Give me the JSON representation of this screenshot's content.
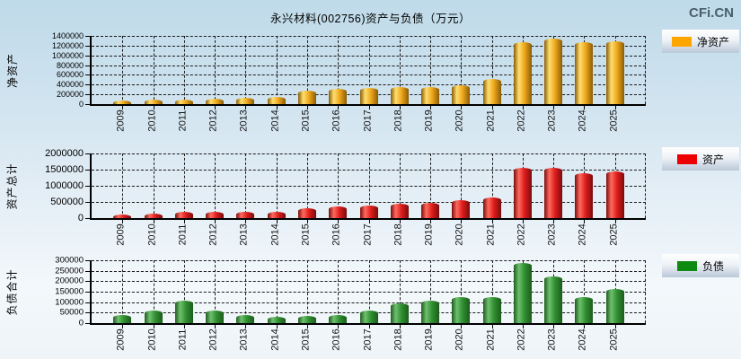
{
  "page": {
    "title": "永兴材料(002756)资产与负债（万元）",
    "watermark": "CFi.CN"
  },
  "chart_data": [
    {
      "type": "bar",
      "title": "净资产柱状图",
      "ylabel": "净资产",
      "legend": "净资产",
      "legend_color": "#FFA500",
      "bar_gradient": {
        "dark": "#8a5c06",
        "light": "#ffdf70",
        "mid": "#eea71c"
      },
      "categories": [
        "2009",
        "2010",
        "2011",
        "2012",
        "2013",
        "2014",
        "2015",
        "2016",
        "2017",
        "2018",
        "2019",
        "2020",
        "2021",
        "2022",
        "2023",
        "2024",
        "2025"
      ],
      "values": [
        72000,
        85000,
        98000,
        112000,
        130000,
        155000,
        285000,
        310000,
        330000,
        348000,
        342000,
        395000,
        515000,
        1270000,
        1350000,
        1270000,
        1295000
      ],
      "ylim": [
        0,
        1400000
      ],
      "yticks": [
        0,
        200000,
        400000,
        600000,
        800000,
        1000000,
        1200000,
        1400000
      ],
      "grid": true,
      "legend_position": "right"
    },
    {
      "type": "bar",
      "title": "资产总计柱状图",
      "ylabel": "资产总计",
      "legend": "资产",
      "legend_color": "#EE0000",
      "bar_gradient": {
        "dark": "#7a0c0c",
        "light": "#ff6b5e",
        "mid": "#dd1c1c"
      },
      "categories": [
        "2009",
        "2010",
        "2011",
        "2012",
        "2013",
        "2014",
        "2015",
        "2016",
        "2017",
        "2018",
        "2019",
        "2020",
        "2021",
        "2022",
        "2023",
        "2024",
        "2025"
      ],
      "values": [
        125000,
        145000,
        195000,
        190000,
        190000,
        190000,
        315000,
        350000,
        385000,
        435000,
        465000,
        545000,
        650000,
        1565000,
        1560000,
        1395000,
        1450000
      ],
      "ylim": [
        0,
        2000000
      ],
      "yticks": [
        0,
        500000,
        1000000,
        1500000,
        2000000
      ],
      "grid": true,
      "legend_position": "right"
    },
    {
      "type": "bar",
      "title": "负债合计柱状图",
      "ylabel": "负债合计",
      "legend": "负债",
      "legend_color": "#0E8A10",
      "bar_gradient": {
        "dark": "#1d5c1d",
        "light": "#6fc06f",
        "mid": "#2f8f2f"
      },
      "categories": [
        "2009",
        "2010",
        "2011",
        "2012",
        "2013",
        "2014",
        "2015",
        "2016",
        "2017",
        "2018",
        "2019",
        "2020",
        "2021",
        "2022",
        "2023",
        "2024",
        "2025"
      ],
      "values": [
        38000,
        60000,
        106000,
        60000,
        38000,
        28000,
        33000,
        38000,
        60000,
        93000,
        108000,
        125000,
        125000,
        287000,
        224000,
        126000,
        165000
      ],
      "ylim": [
        0,
        300000
      ],
      "yticks": [
        0,
        50000,
        100000,
        150000,
        200000,
        250000,
        300000
      ],
      "grid": true,
      "legend_position": "right"
    }
  ]
}
